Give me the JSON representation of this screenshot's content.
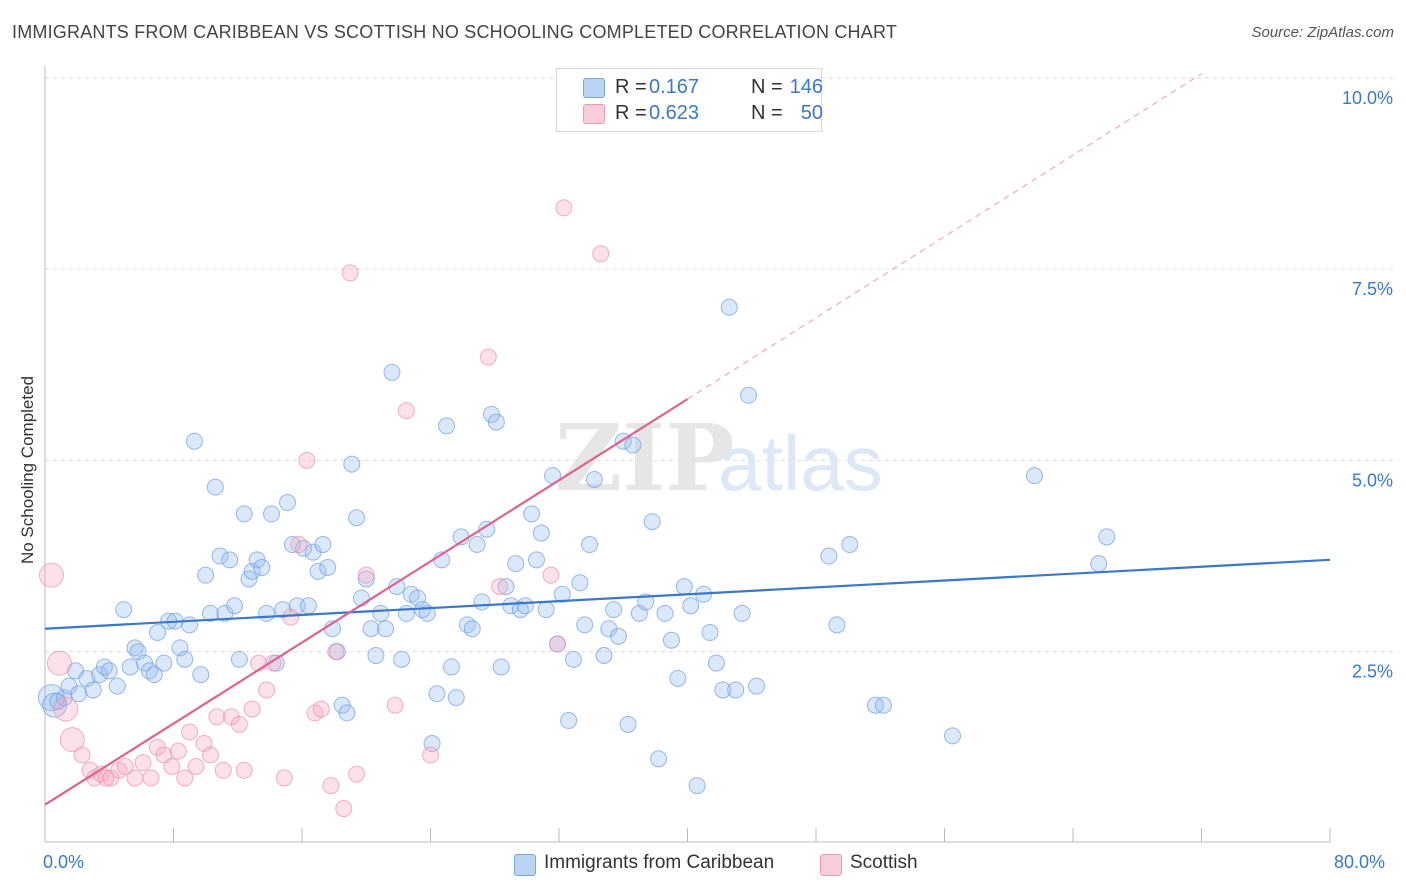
{
  "title": "IMMIGRANTS FROM CARIBBEAN VS SCOTTISH NO SCHOOLING COMPLETED CORRELATION CHART",
  "source": "Source: ZipAtlas.com",
  "watermark": {
    "zip": "ZIP",
    "atlas": "atlas"
  },
  "legend": {
    "rows": [
      {
        "r_label": "R =",
        "r_value": "0.167",
        "n_label": "N =",
        "n_value": "146",
        "color": "#a9c8f0",
        "border": "#7aa7e0"
      },
      {
        "r_label": "R =",
        "r_value": "0.623",
        "n_label": "N =",
        "n_value": "50",
        "color": "#f6bfd0",
        "border": "#ee9ab4"
      }
    ]
  },
  "bottom_legend": [
    {
      "label": "Immigrants from Caribbean",
      "color": "#a9c8f0"
    },
    {
      "label": "Scottish",
      "color": "#f6bfd0"
    }
  ],
  "x_tick_left": "0.0%",
  "x_tick_right": "80.0%",
  "colors": {
    "blue": "#3a78c9",
    "blue_fill": "rgba(150,190,240,0.35)",
    "pink": "#e0628c",
    "pink_fill": "rgba(246,170,196,0.35)",
    "grid": "#dddddd"
  },
  "chart_data": {
    "type": "scatter",
    "title": "IMMIGRANTS FROM CARIBBEAN VS SCOTTISH NO SCHOOLING COMPLETED CORRELATION CHART",
    "xlabel": "",
    "ylabel": "No Schooling Completed",
    "xlim": [
      0,
      80
    ],
    "ylim": [
      0,
      10.5
    ],
    "x_ticks": [
      "0.0%",
      "80.0%"
    ],
    "y_ticks": [
      {
        "value": 2.5,
        "label": "2.5%"
      },
      {
        "value": 5.0,
        "label": "5.0%"
      },
      {
        "value": 7.5,
        "label": "7.5%"
      },
      {
        "value": 10.0,
        "label": "10.0%"
      }
    ],
    "grid": true,
    "legend_position": "top-center",
    "series": [
      {
        "name": "Immigrants from Caribbean",
        "R": 0.167,
        "N": 146,
        "trend": {
          "x": [
            0,
            80
          ],
          "y": [
            2.8,
            3.7
          ],
          "style": "solid"
        },
        "points": [
          [
            0.4,
            1.9,
            3
          ],
          [
            0.6,
            1.8,
            2
          ],
          [
            0.8,
            1.85,
            1
          ],
          [
            1.2,
            1.9,
            1
          ],
          [
            1.5,
            2.05,
            1
          ],
          [
            1.9,
            2.25,
            1
          ],
          [
            2.1,
            1.95,
            1
          ],
          [
            2.6,
            2.15,
            1
          ],
          [
            3.0,
            2.0,
            1
          ],
          [
            3.4,
            2.2,
            1
          ],
          [
            3.7,
            2.3,
            1
          ],
          [
            4.0,
            2.25,
            1
          ],
          [
            4.5,
            2.05,
            1
          ],
          [
            4.9,
            3.05,
            1
          ],
          [
            5.3,
            2.3,
            1
          ],
          [
            5.6,
            2.55,
            1
          ],
          [
            5.8,
            2.5,
            1
          ],
          [
            6.2,
            2.35,
            1
          ],
          [
            6.5,
            2.25,
            1
          ],
          [
            6.8,
            2.2,
            1
          ],
          [
            7.0,
            2.75,
            1
          ],
          [
            7.4,
            2.35,
            1
          ],
          [
            7.7,
            2.9,
            1
          ],
          [
            8.1,
            2.9,
            1
          ],
          [
            8.4,
            2.55,
            1
          ],
          [
            8.7,
            2.4,
            1
          ],
          [
            9.0,
            2.85,
            1
          ],
          [
            9.3,
            5.25,
            1
          ],
          [
            9.7,
            2.2,
            1
          ],
          [
            10.0,
            3.5,
            1
          ],
          [
            10.3,
            3.0,
            1
          ],
          [
            10.6,
            4.65,
            1
          ],
          [
            10.9,
            3.75,
            1
          ],
          [
            11.2,
            3.0,
            1
          ],
          [
            11.5,
            3.7,
            1
          ],
          [
            11.8,
            3.1,
            1
          ],
          [
            12.1,
            2.4,
            1
          ],
          [
            12.4,
            4.3,
            1
          ],
          [
            12.7,
            3.45,
            1
          ],
          [
            12.9,
            3.55,
            1
          ],
          [
            13.2,
            3.7,
            1
          ],
          [
            13.5,
            3.6,
            1
          ],
          [
            13.8,
            3.0,
            1
          ],
          [
            14.1,
            4.3,
            1
          ],
          [
            14.4,
            2.35,
            1
          ],
          [
            14.8,
            3.05,
            1
          ],
          [
            15.1,
            4.45,
            1
          ],
          [
            15.4,
            3.9,
            1
          ],
          [
            15.7,
            3.1,
            1
          ],
          [
            16.1,
            3.85,
            1
          ],
          [
            16.4,
            3.1,
            1
          ],
          [
            16.7,
            3.8,
            1
          ],
          [
            17.0,
            3.55,
            1
          ],
          [
            17.3,
            3.9,
            1
          ],
          [
            17.6,
            3.6,
            1
          ],
          [
            17.9,
            2.8,
            1
          ],
          [
            18.2,
            2.5,
            1
          ],
          [
            18.5,
            1.8,
            1
          ],
          [
            18.8,
            1.7,
            1
          ],
          [
            19.1,
            4.95,
            1
          ],
          [
            19.4,
            4.25,
            1
          ],
          [
            19.7,
            3.2,
            1
          ],
          [
            20.0,
            3.45,
            1
          ],
          [
            20.3,
            2.8,
            1
          ],
          [
            20.6,
            2.45,
            1
          ],
          [
            20.9,
            3.0,
            1
          ],
          [
            21.2,
            2.8,
            1
          ],
          [
            21.6,
            6.15,
            1
          ],
          [
            21.9,
            3.35,
            1
          ],
          [
            22.2,
            2.4,
            1
          ],
          [
            22.5,
            3.0,
            1
          ],
          [
            22.8,
            3.25,
            1
          ],
          [
            23.2,
            3.2,
            1
          ],
          [
            23.5,
            3.05,
            1
          ],
          [
            23.8,
            3.0,
            1
          ],
          [
            24.1,
            1.3,
            1
          ],
          [
            24.4,
            1.95,
            1
          ],
          [
            24.7,
            3.7,
            1
          ],
          [
            25.0,
            5.45,
            1
          ],
          [
            25.3,
            2.3,
            1
          ],
          [
            25.6,
            1.9,
            1
          ],
          [
            25.9,
            4.0,
            1
          ],
          [
            26.3,
            2.85,
            1
          ],
          [
            26.6,
            2.8,
            1
          ],
          [
            26.9,
            3.9,
            1
          ],
          [
            27.2,
            3.15,
            1
          ],
          [
            27.5,
            4.1,
            1
          ],
          [
            27.8,
            5.6,
            1
          ],
          [
            28.1,
            5.5,
            1
          ],
          [
            28.4,
            2.3,
            1
          ],
          [
            28.7,
            3.35,
            1
          ],
          [
            29.0,
            3.1,
            1
          ],
          [
            29.3,
            3.65,
            1
          ],
          [
            29.6,
            3.05,
            1
          ],
          [
            29.9,
            3.1,
            1
          ],
          [
            30.3,
            4.3,
            1
          ],
          [
            30.6,
            3.7,
            1
          ],
          [
            30.9,
            4.05,
            1
          ],
          [
            31.2,
            3.05,
            1
          ],
          [
            31.6,
            4.8,
            1
          ],
          [
            31.9,
            2.6,
            1
          ],
          [
            32.2,
            3.25,
            1
          ],
          [
            32.6,
            1.6,
            1
          ],
          [
            32.9,
            2.4,
            1
          ],
          [
            33.3,
            3.4,
            1
          ],
          [
            33.6,
            2.85,
            1
          ],
          [
            33.9,
            3.9,
            1
          ],
          [
            34.2,
            4.75,
            1
          ],
          [
            34.8,
            2.45,
            1
          ],
          [
            35.1,
            2.8,
            1
          ],
          [
            35.4,
            3.05,
            1
          ],
          [
            35.7,
            2.7,
            1
          ],
          [
            36.0,
            5.25,
            1
          ],
          [
            36.3,
            1.55,
            1
          ],
          [
            36.6,
            5.2,
            1
          ],
          [
            37.0,
            3.0,
            1
          ],
          [
            37.4,
            3.15,
            1
          ],
          [
            37.8,
            4.2,
            1
          ],
          [
            38.2,
            1.1,
            1
          ],
          [
            38.6,
            3.0,
            1
          ],
          [
            39.0,
            2.65,
            1
          ],
          [
            39.4,
            2.15,
            1
          ],
          [
            39.8,
            3.35,
            1
          ],
          [
            40.2,
            3.1,
            1
          ],
          [
            40.6,
            0.75,
            1
          ],
          [
            41.0,
            3.25,
            1
          ],
          [
            41.4,
            2.75,
            1
          ],
          [
            41.8,
            2.35,
            1
          ],
          [
            42.2,
            2.0,
            1
          ],
          [
            42.6,
            7.0,
            1
          ],
          [
            43.0,
            2.0,
            1
          ],
          [
            43.4,
            3.0,
            1
          ],
          [
            43.8,
            5.85,
            1
          ],
          [
            44.3,
            2.05,
            1
          ],
          [
            48.8,
            3.75,
            1
          ],
          [
            49.3,
            2.85,
            1
          ],
          [
            50.1,
            3.9,
            1
          ],
          [
            51.7,
            1.8,
            1
          ],
          [
            52.2,
            1.8,
            1
          ],
          [
            56.5,
            1.4,
            1
          ],
          [
            61.6,
            4.8,
            1
          ],
          [
            65.6,
            3.65,
            1
          ],
          [
            66.1,
            4.0,
            1
          ]
        ]
      },
      {
        "name": "Scottish",
        "R": 0.623,
        "N": 50,
        "trend": {
          "x": [
            0,
            40
          ],
          "y": [
            0.5,
            5.8
          ],
          "extended": {
            "x": [
              40,
              72
            ],
            "y": [
              5.8,
              10.05
            ]
          },
          "style": "solid+dashed"
        },
        "points": [
          [
            0.4,
            3.5,
            2
          ],
          [
            0.9,
            2.35,
            2
          ],
          [
            1.3,
            1.75,
            2
          ],
          [
            1.7,
            1.35,
            2
          ],
          [
            2.3,
            1.15,
            1
          ],
          [
            2.8,
            0.95,
            1
          ],
          [
            3.1,
            0.85,
            1
          ],
          [
            3.5,
            0.9,
            1
          ],
          [
            3.8,
            0.85,
            1
          ],
          [
            4.1,
            0.85,
            1
          ],
          [
            4.6,
            0.95,
            1
          ],
          [
            5.0,
            1.0,
            1
          ],
          [
            5.6,
            0.85,
            1
          ],
          [
            6.1,
            1.05,
            1
          ],
          [
            6.6,
            0.85,
            1
          ],
          [
            7.0,
            1.25,
            1
          ],
          [
            7.4,
            1.15,
            1
          ],
          [
            7.9,
            1.0,
            1
          ],
          [
            8.3,
            1.2,
            1
          ],
          [
            8.7,
            0.85,
            1
          ],
          [
            9.0,
            1.45,
            1
          ],
          [
            9.4,
            1.0,
            1
          ],
          [
            9.9,
            1.3,
            1
          ],
          [
            10.3,
            1.15,
            1
          ],
          [
            10.7,
            1.65,
            1
          ],
          [
            11.1,
            0.95,
            1
          ],
          [
            11.6,
            1.65,
            1
          ],
          [
            12.1,
            1.55,
            1
          ],
          [
            12.4,
            0.95,
            1
          ],
          [
            12.9,
            1.75,
            1
          ],
          [
            13.3,
            2.35,
            1
          ],
          [
            13.8,
            2.0,
            1
          ],
          [
            14.2,
            2.35,
            1
          ],
          [
            14.9,
            0.85,
            1
          ],
          [
            15.3,
            2.95,
            1
          ],
          [
            15.8,
            3.9,
            1
          ],
          [
            16.3,
            5.0,
            1
          ],
          [
            16.8,
            1.7,
            1
          ],
          [
            17.2,
            1.75,
            1
          ],
          [
            17.8,
            0.75,
            1
          ],
          [
            18.1,
            2.5,
            1
          ],
          [
            18.6,
            0.45,
            1
          ],
          [
            19.0,
            7.45,
            1
          ],
          [
            19.4,
            0.9,
            1
          ],
          [
            20.0,
            3.5,
            1
          ],
          [
            21.8,
            1.8,
            1
          ],
          [
            22.5,
            5.65,
            1
          ],
          [
            24.0,
            1.15,
            1
          ],
          [
            27.6,
            6.35,
            1
          ],
          [
            28.3,
            3.35,
            1
          ],
          [
            31.5,
            3.5,
            1
          ],
          [
            31.9,
            2.6,
            1
          ],
          [
            32.3,
            8.3,
            1
          ],
          [
            34.6,
            7.7,
            1
          ]
        ]
      }
    ]
  }
}
